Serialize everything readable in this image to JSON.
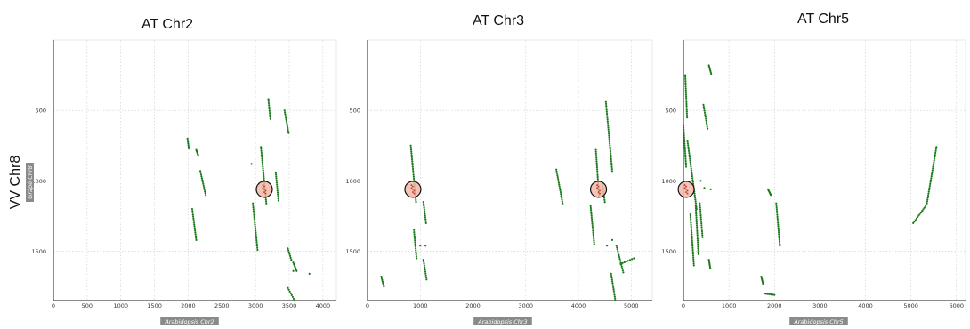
{
  "figure": {
    "row_label": "VV Chr8",
    "colors": {
      "dot": "#1a7a1a",
      "highlight_fill": "#f2b8a8",
      "grid": "#cccccc",
      "frame": "#444444",
      "axis_label_bg": "#8a8a8a"
    }
  },
  "chart_data": [
    {
      "type": "scatter",
      "title": "AT Chr2",
      "xlabel": "Arabidopsis Chr2",
      "ylabel": "Grape Chr8",
      "xlim": [
        0,
        4200
      ],
      "ylim": [
        1850,
        0
      ],
      "xticks": [
        "0",
        "500",
        "1000",
        "1500",
        "2000",
        "2500",
        "3000",
        "3500",
        "4000"
      ],
      "yticks": [
        "500",
        "1000",
        "1500"
      ],
      "grid": true,
      "highlight": [
        {
          "x": 3130,
          "y": 1060
        }
      ],
      "segments": [
        {
          "x": [
            1990,
            2010
          ],
          "y": [
            700,
            770
          ]
        },
        {
          "x": [
            2120,
            2150
          ],
          "y": [
            780,
            820
          ]
        },
        {
          "x": [
            2180,
            2260
          ],
          "y": [
            930,
            1100
          ]
        },
        {
          "x": [
            2060,
            2120
          ],
          "y": [
            1200,
            1420
          ]
        },
        {
          "x": [
            2960,
            3030
          ],
          "y": [
            1160,
            1490
          ]
        },
        {
          "x": [
            3080,
            3160
          ],
          "y": [
            760,
            1160
          ]
        },
        {
          "x": [
            3190,
            3220
          ],
          "y": [
            420,
            560
          ]
        },
        {
          "x": [
            3300,
            3340
          ],
          "y": [
            940,
            1140
          ]
        },
        {
          "x": [
            3430,
            3490
          ],
          "y": [
            500,
            660
          ]
        },
        {
          "x": [
            3480,
            3530
          ],
          "y": [
            1480,
            1560
          ]
        },
        {
          "x": [
            3560,
            3610
          ],
          "y": [
            1580,
            1640
          ]
        },
        {
          "x": [
            3480,
            3580
          ],
          "y": [
            1760,
            1850
          ]
        }
      ],
      "points": [
        {
          "x": 2940,
          "y": 880
        },
        {
          "x": 3800,
          "y": 1660
        },
        {
          "x": 3560,
          "y": 1640
        }
      ]
    },
    {
      "type": "scatter",
      "title": "AT Chr3",
      "xlabel": "Arabidopsis Chr3",
      "ylabel": "",
      "xlim": [
        0,
        5400
      ],
      "ylim": [
        1850,
        0
      ],
      "xticks": [
        "0",
        "1000",
        "2000",
        "3000",
        "4000",
        "5000"
      ],
      "yticks": [
        "500",
        "1000",
        "1500"
      ],
      "grid": true,
      "highlight": [
        {
          "x": 860,
          "y": 1060
        },
        {
          "x": 4380,
          "y": 1060
        }
      ],
      "segments": [
        {
          "x": [
            820,
            920
          ],
          "y": [
            750,
            1150
          ]
        },
        {
          "x": [
            880,
            930
          ],
          "y": [
            1350,
            1550
          ]
        },
        {
          "x": [
            1060,
            1110
          ],
          "y": [
            1150,
            1300
          ]
        },
        {
          "x": [
            1060,
            1120
          ],
          "y": [
            1560,
            1700
          ]
        },
        {
          "x": [
            260,
            310
          ],
          "y": [
            1680,
            1750
          ]
        },
        {
          "x": [
            3580,
            3700
          ],
          "y": [
            920,
            1160
          ]
        },
        {
          "x": [
            4330,
            4390
          ],
          "y": [
            780,
            1110
          ]
        },
        {
          "x": [
            4230,
            4300
          ],
          "y": [
            1180,
            1450
          ]
        },
        {
          "x": [
            4520,
            4640
          ],
          "y": [
            440,
            930
          ]
        },
        {
          "x": [
            4450,
            4500
          ],
          "y": [
            1020,
            1150
          ]
        },
        {
          "x": [
            4720,
            4850
          ],
          "y": [
            1460,
            1650
          ]
        },
        {
          "x": [
            4800,
            5050
          ],
          "y": [
            1590,
            1550
          ]
        },
        {
          "x": [
            4620,
            4700
          ],
          "y": [
            1660,
            1850
          ]
        }
      ],
      "points": [
        {
          "x": 1100,
          "y": 1460
        },
        {
          "x": 4540,
          "y": 1460
        },
        {
          "x": 4640,
          "y": 1420
        },
        {
          "x": 1000,
          "y": 1460
        }
      ]
    },
    {
      "type": "scatter",
      "title": "AT Chr5",
      "xlabel": "Arabidopsis Chr5",
      "ylabel": "",
      "xlim": [
        0,
        6200
      ],
      "ylim": [
        1850,
        0
      ],
      "xticks": [
        "0",
        "1000",
        "2000",
        "3000",
        "4000",
        "5000",
        "6000"
      ],
      "yticks": [
        "500",
        "1000",
        "1500"
      ],
      "grid": true,
      "highlight": [
        {
          "x": 60,
          "y": 1060
        }
      ],
      "segments": [
        {
          "x": [
            40,
            80
          ],
          "y": [
            250,
            550
          ]
        },
        {
          "x": [
            0,
            60
          ],
          "y": [
            610,
            900
          ]
        },
        {
          "x": [
            90,
            290
          ],
          "y": [
            720,
            1200
          ]
        },
        {
          "x": [
            150,
            230
          ],
          "y": [
            1230,
            1600
          ]
        },
        {
          "x": [
            270,
            330
          ],
          "y": [
            1180,
            1520
          ]
        },
        {
          "x": [
            360,
            420
          ],
          "y": [
            1160,
            1400
          ]
        },
        {
          "x": [
            440,
            530
          ],
          "y": [
            460,
            630
          ]
        },
        {
          "x": [
            560,
            610
          ],
          "y": [
            180,
            240
          ]
        },
        {
          "x": [
            560,
            590
          ],
          "y": [
            1560,
            1620
          ]
        },
        {
          "x": [
            1860,
            1920
          ],
          "y": [
            1060,
            1100
          ]
        },
        {
          "x": [
            2040,
            2120
          ],
          "y": [
            1160,
            1460
          ]
        },
        {
          "x": [
            1710,
            1750
          ],
          "y": [
            1680,
            1730
          ]
        },
        {
          "x": [
            1780,
            2000
          ],
          "y": [
            1800,
            1810
          ]
        },
        {
          "x": [
            5050,
            5320
          ],
          "y": [
            1300,
            1180
          ]
        },
        {
          "x": [
            5350,
            5560
          ],
          "y": [
            1160,
            760
          ]
        }
      ],
      "points": [
        {
          "x": 160,
          "y": 1020
        },
        {
          "x": 380,
          "y": 1000
        },
        {
          "x": 460,
          "y": 1050
        },
        {
          "x": 600,
          "y": 1060
        }
      ]
    }
  ]
}
